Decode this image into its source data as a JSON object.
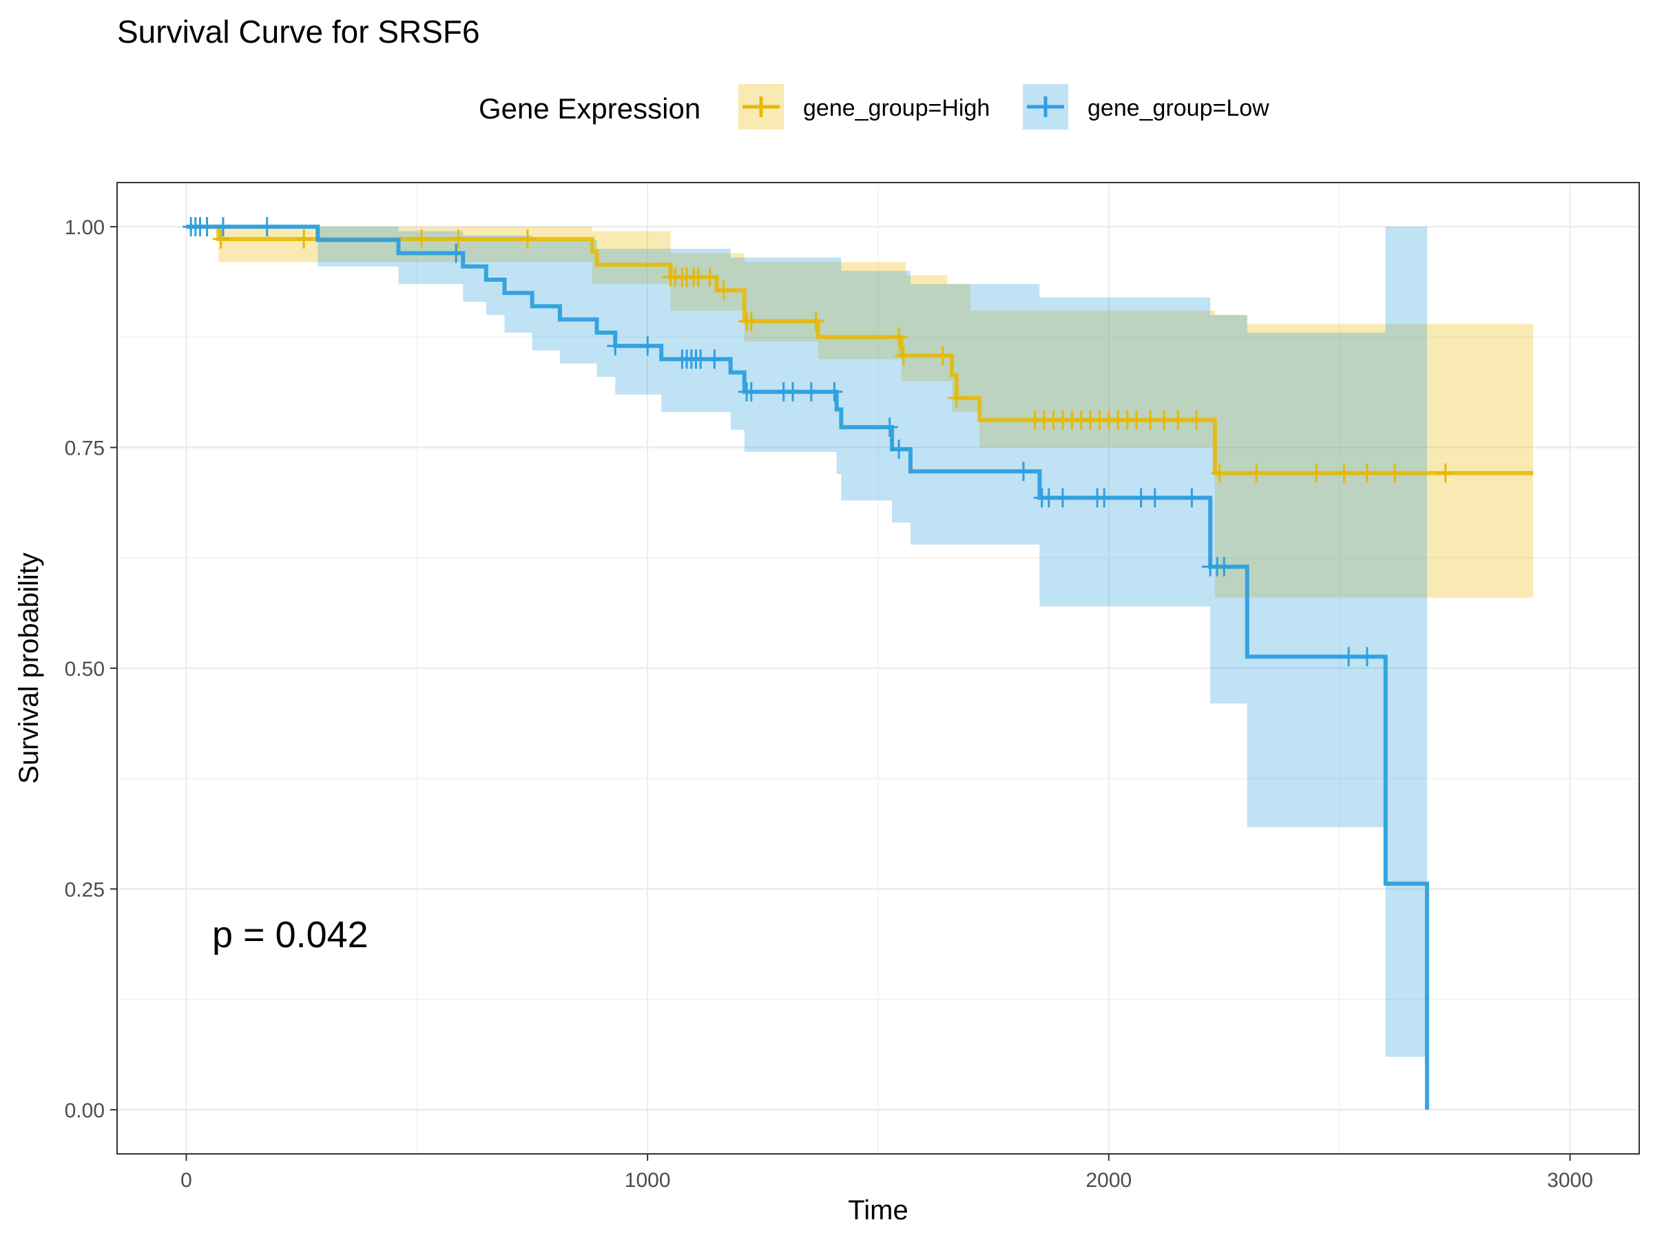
{
  "chart_data": {
    "type": "line",
    "subtype": "kaplan-meier survival curve",
    "title": "Survival Curve for SRSF6",
    "xlabel": "Time",
    "ylabel": "Survival probability",
    "xlim": [
      -150,
      3150
    ],
    "ylim": [
      -0.05,
      1.05
    ],
    "x_ticks": [
      0,
      1000,
      2000,
      3000
    ],
    "x_tick_labels": [
      "0",
      "1000",
      "2000",
      "3000"
    ],
    "y_ticks": [
      0,
      0.25,
      0.5,
      0.75,
      1
    ],
    "y_tick_labels": [
      "0.00",
      "0.25",
      "0.50",
      "0.75",
      "1.00"
    ],
    "grid": true,
    "legend_title": "Gene Expression",
    "legend_position": "top",
    "annotation": "p = 0.042",
    "series": [
      {
        "name": "gene_group=High",
        "color": "#E7B800",
        "steps": [
          [
            0,
            1.0
          ],
          [
            70,
            0.986
          ],
          [
            880,
            0.972
          ],
          [
            890,
            0.957
          ],
          [
            1050,
            0.943
          ],
          [
            1150,
            0.928
          ],
          [
            1210,
            0.893
          ],
          [
            1370,
            0.875
          ],
          [
            1550,
            0.854
          ],
          [
            1660,
            0.832
          ],
          [
            1670,
            0.806
          ],
          [
            1720,
            0.781
          ],
          [
            2230,
            0.721
          ],
          [
            2920,
            0.721
          ]
        ],
        "ci_upper": [
          [
            0,
            1.0
          ],
          [
            880,
            0.995
          ],
          [
            1050,
            0.97
          ],
          [
            1210,
            0.96
          ],
          [
            1560,
            0.945
          ],
          [
            1650,
            0.935
          ],
          [
            1700,
            0.905
          ],
          [
            2230,
            0.9
          ],
          [
            2300,
            0.89
          ],
          [
            2920,
            0.89
          ]
        ],
        "ci_lower": [
          [
            0,
            1.0
          ],
          [
            70,
            0.96
          ],
          [
            880,
            0.935
          ],
          [
            1050,
            0.905
          ],
          [
            1210,
            0.87
          ],
          [
            1370,
            0.85
          ],
          [
            1550,
            0.825
          ],
          [
            1660,
            0.79
          ],
          [
            1720,
            0.75
          ],
          [
            2230,
            0.58
          ],
          [
            2920,
            0.58
          ]
        ],
        "censor_times": [
          45,
          75,
          255,
          510,
          590,
          740,
          1050,
          1060,
          1075,
          1085,
          1100,
          1110,
          1135,
          1165,
          1215,
          1225,
          1365,
          1545,
          1555,
          1640,
          1670,
          1840,
          1860,
          1880,
          1900,
          1920,
          1940,
          1960,
          1980,
          2000,
          2020,
          2040,
          2060,
          2090,
          2120,
          2150,
          2190,
          2240,
          2320,
          2450,
          2510,
          2560,
          2620,
          2730
        ]
      },
      {
        "name": "gene_group=Low",
        "color": "#2E9FDF",
        "steps": [
          [
            0,
            1.0
          ],
          [
            285,
            0.985
          ],
          [
            460,
            0.97
          ],
          [
            600,
            0.955
          ],
          [
            650,
            0.94
          ],
          [
            690,
            0.925
          ],
          [
            750,
            0.91
          ],
          [
            810,
            0.895
          ],
          [
            890,
            0.88
          ],
          [
            930,
            0.865
          ],
          [
            1030,
            0.85
          ],
          [
            1180,
            0.835
          ],
          [
            1210,
            0.813
          ],
          [
            1410,
            0.793
          ],
          [
            1420,
            0.773
          ],
          [
            1530,
            0.748
          ],
          [
            1570,
            0.723
          ],
          [
            1850,
            0.693
          ],
          [
            2220,
            0.615
          ],
          [
            2300,
            0.513
          ],
          [
            2600,
            0.256
          ],
          [
            2690,
            0.0
          ]
        ],
        "ci_upper": [
          [
            0,
            1.0
          ],
          [
            460,
            0.995
          ],
          [
            600,
            0.99
          ],
          [
            750,
            0.985
          ],
          [
            890,
            0.975
          ],
          [
            1180,
            0.965
          ],
          [
            1420,
            0.95
          ],
          [
            1570,
            0.935
          ],
          [
            1850,
            0.92
          ],
          [
            2220,
            0.9
          ],
          [
            2300,
            0.88
          ],
          [
            2600,
            1.0
          ],
          [
            2690,
            1.0
          ]
        ],
        "ci_lower": [
          [
            0,
            1.0
          ],
          [
            285,
            0.955
          ],
          [
            460,
            0.935
          ],
          [
            600,
            0.915
          ],
          [
            650,
            0.9
          ],
          [
            690,
            0.88
          ],
          [
            750,
            0.86
          ],
          [
            810,
            0.845
          ],
          [
            890,
            0.83
          ],
          [
            930,
            0.81
          ],
          [
            1030,
            0.79
          ],
          [
            1180,
            0.77
          ],
          [
            1210,
            0.745
          ],
          [
            1410,
            0.72
          ],
          [
            1420,
            0.69
          ],
          [
            1530,
            0.665
          ],
          [
            1570,
            0.64
          ],
          [
            1850,
            0.57
          ],
          [
            2220,
            0.46
          ],
          [
            2300,
            0.32
          ],
          [
            2600,
            0.06
          ],
          [
            2690,
            0.06
          ]
        ],
        "censor_times": [
          10,
          20,
          30,
          45,
          80,
          175,
          585,
          930,
          1000,
          1075,
          1085,
          1095,
          1105,
          1115,
          1145,
          1215,
          1225,
          1295,
          1315,
          1355,
          1405,
          1525,
          1545,
          1815,
          1855,
          1870,
          1900,
          1975,
          1990,
          2070,
          2100,
          2180,
          2220,
          2235,
          2250,
          2520,
          2560
        ]
      }
    ]
  }
}
